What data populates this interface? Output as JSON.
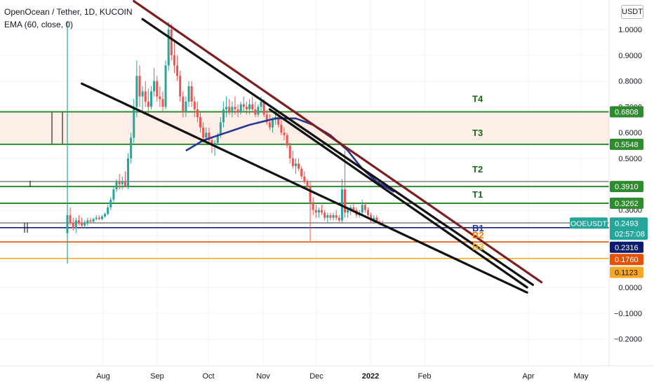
{
  "header": {
    "title": "OpenOcean / Tether, 1D, KUCOIN",
    "indicator": "EMA (60, close, 0)"
  },
  "axis": {
    "unit": "USDT",
    "y_ticks": [
      "1.0000",
      "0.9000",
      "0.8000",
      "0.7000",
      "0.6000",
      "0.5000",
      "0.4000",
      "0.3000",
      "0.2000",
      "0.1000",
      "0.0000",
      "−0.1000",
      "−0.2000"
    ],
    "x_ticks": [
      "Aug",
      "Sep",
      "Oct",
      "Nov",
      "Dec",
      "2022",
      "Feb",
      "Apr",
      "May"
    ]
  },
  "chart_data": {
    "type": "candlestick",
    "symbol": "OOEUSDT",
    "exchange": "KUCOIN",
    "interval": "1D",
    "ylim": [
      -0.26,
      1.1
    ],
    "grid": true,
    "price": {
      "value": 0.2493,
      "countdown": "02:57:08",
      "color": "#26a69a"
    },
    "levels": [
      {
        "label": "T4",
        "value": 0.6808,
        "color": "#2e8b2e",
        "tag_color": "#2e8b2e",
        "text_color": "#1b6b1b"
      },
      {
        "label": "T3",
        "value": 0.5548,
        "color": "#2e8b2e",
        "tag_color": "#2e8b2e",
        "text_color": "#1b6b1b"
      },
      {
        "label": "T2",
        "value": 0.391,
        "color": "#2e8b2e",
        "tag_color": "#2e8b2e",
        "text_color": "#1b6b1b"
      },
      {
        "label": "T1",
        "value": 0.3262,
        "color": "#2e8b2e",
        "tag_color": "#2e8b2e",
        "text_color": "#1b6b1b"
      },
      {
        "label": "B1",
        "value": 0.2316,
        "color": "#1a237e",
        "tag_color": "#0d1b6e",
        "text_color": "#283593"
      },
      {
        "label": "B2",
        "value": 0.176,
        "color": "#e65100",
        "tag_color": "#e65100",
        "text_color": "#f57c00"
      },
      {
        "label": "B3",
        "value": 0.1123,
        "color": "#f9a825",
        "tag_color": "#f9a825",
        "text_color": "#f9a825"
      }
    ],
    "zone": {
      "from": 0.5548,
      "to": 0.6808,
      "color": "#fdeee8"
    },
    "ema_period": 60,
    "candles": [
      [
        0.21,
        0.33,
        0.17,
        0.28
      ],
      [
        0.28,
        0.31,
        0.24,
        0.25
      ],
      [
        0.25,
        0.27,
        0.22,
        0.23
      ],
      [
        0.23,
        0.27,
        0.21,
        0.26
      ],
      [
        0.26,
        0.28,
        0.24,
        0.25
      ],
      [
        0.25,
        0.27,
        0.23,
        0.24
      ],
      [
        0.24,
        0.26,
        0.23,
        0.25
      ],
      [
        0.25,
        0.27,
        0.24,
        0.26
      ],
      [
        0.26,
        0.27,
        0.25,
        0.255
      ],
      [
        0.255,
        0.27,
        0.25,
        0.265
      ],
      [
        0.265,
        0.28,
        0.26,
        0.27
      ],
      [
        0.27,
        0.28,
        0.26,
        0.265
      ],
      [
        0.265,
        0.28,
        0.26,
        0.275
      ],
      [
        0.275,
        0.29,
        0.27,
        0.285
      ],
      [
        0.285,
        0.32,
        0.28,
        0.31
      ],
      [
        0.31,
        0.35,
        0.3,
        0.34
      ],
      [
        0.34,
        0.39,
        0.33,
        0.38
      ],
      [
        0.38,
        0.42,
        0.37,
        0.41
      ],
      [
        0.41,
        0.44,
        0.38,
        0.4
      ],
      [
        0.4,
        0.43,
        0.38,
        0.41
      ],
      [
        0.41,
        0.45,
        0.39,
        0.39
      ],
      [
        0.39,
        0.52,
        0.38,
        0.5
      ],
      [
        0.5,
        0.6,
        0.48,
        0.58
      ],
      [
        0.58,
        0.73,
        0.56,
        0.7
      ],
      [
        0.7,
        0.88,
        0.66,
        0.82
      ],
      [
        0.82,
        0.86,
        0.7,
        0.74
      ],
      [
        0.74,
        0.78,
        0.68,
        0.76
      ],
      [
        0.76,
        0.8,
        0.7,
        0.72
      ],
      [
        0.72,
        0.77,
        0.67,
        0.7
      ],
      [
        0.7,
        0.78,
        0.69,
        0.76
      ],
      [
        0.76,
        0.85,
        0.74,
        0.8
      ],
      [
        0.8,
        0.82,
        0.72,
        0.74
      ],
      [
        0.74,
        0.78,
        0.7,
        0.73
      ],
      [
        0.73,
        0.76,
        0.68,
        0.7
      ],
      [
        0.7,
        0.88,
        0.69,
        0.86
      ],
      [
        0.86,
        1.03,
        0.84,
        1.0
      ],
      [
        1.0,
        1.02,
        0.88,
        0.9
      ],
      [
        0.9,
        0.95,
        0.83,
        0.86
      ],
      [
        0.86,
        0.9,
        0.8,
        0.82
      ],
      [
        0.82,
        0.84,
        0.72,
        0.74
      ],
      [
        0.74,
        0.76,
        0.66,
        0.68
      ],
      [
        0.68,
        0.74,
        0.66,
        0.72
      ],
      [
        0.72,
        0.8,
        0.7,
        0.78
      ],
      [
        0.78,
        0.8,
        0.7,
        0.72
      ],
      [
        0.72,
        0.74,
        0.66,
        0.69
      ],
      [
        0.69,
        0.72,
        0.64,
        0.66
      ],
      [
        0.66,
        0.68,
        0.6,
        0.62
      ],
      [
        0.62,
        0.64,
        0.56,
        0.58
      ],
      [
        0.58,
        0.62,
        0.56,
        0.6
      ],
      [
        0.6,
        0.62,
        0.56,
        0.57
      ],
      [
        0.57,
        0.58,
        0.52,
        0.55
      ],
      [
        0.55,
        0.57,
        0.51,
        0.56
      ],
      [
        0.56,
        0.6,
        0.55,
        0.59
      ],
      [
        0.59,
        0.66,
        0.58,
        0.64
      ],
      [
        0.64,
        0.72,
        0.62,
        0.69
      ],
      [
        0.69,
        0.74,
        0.66,
        0.7
      ],
      [
        0.7,
        0.73,
        0.67,
        0.68
      ],
      [
        0.68,
        0.72,
        0.66,
        0.7
      ],
      [
        0.7,
        0.74,
        0.67,
        0.69
      ],
      [
        0.69,
        0.71,
        0.66,
        0.68
      ],
      [
        0.68,
        0.72,
        0.67,
        0.71
      ],
      [
        0.71,
        0.74,
        0.68,
        0.7
      ],
      [
        0.7,
        0.72,
        0.67,
        0.69
      ],
      [
        0.69,
        0.73,
        0.67,
        0.71
      ],
      [
        0.71,
        0.74,
        0.68,
        0.69
      ],
      [
        0.69,
        0.72,
        0.66,
        0.67
      ],
      [
        0.67,
        0.71,
        0.66,
        0.7
      ],
      [
        0.7,
        0.74,
        0.68,
        0.72
      ],
      [
        0.72,
        0.73,
        0.66,
        0.67
      ],
      [
        0.67,
        0.69,
        0.63,
        0.64
      ],
      [
        0.64,
        0.67,
        0.61,
        0.62
      ],
      [
        0.62,
        0.66,
        0.6,
        0.65
      ],
      [
        0.65,
        0.69,
        0.63,
        0.66
      ],
      [
        0.66,
        0.68,
        0.62,
        0.63
      ],
      [
        0.63,
        0.65,
        0.59,
        0.6
      ],
      [
        0.6,
        0.62,
        0.57,
        0.59
      ],
      [
        0.59,
        0.6,
        0.54,
        0.55
      ],
      [
        0.55,
        0.56,
        0.48,
        0.5
      ],
      [
        0.5,
        0.53,
        0.46,
        0.47
      ],
      [
        0.47,
        0.5,
        0.44,
        0.48
      ],
      [
        0.48,
        0.5,
        0.45,
        0.46
      ],
      [
        0.46,
        0.47,
        0.42,
        0.43
      ],
      [
        0.43,
        0.45,
        0.4,
        0.41
      ],
      [
        0.41,
        0.42,
        0.38,
        0.39
      ],
      [
        0.39,
        0.41,
        0.18,
        0.33
      ],
      [
        0.33,
        0.35,
        0.28,
        0.3
      ],
      [
        0.3,
        0.32,
        0.27,
        0.29
      ],
      [
        0.29,
        0.31,
        0.27,
        0.3
      ],
      [
        0.3,
        0.32,
        0.28,
        0.29
      ],
      [
        0.29,
        0.3,
        0.26,
        0.27
      ],
      [
        0.27,
        0.29,
        0.25,
        0.28
      ],
      [
        0.28,
        0.29,
        0.26,
        0.27
      ],
      [
        0.27,
        0.29,
        0.26,
        0.28
      ],
      [
        0.28,
        0.3,
        0.26,
        0.27
      ],
      [
        0.27,
        0.28,
        0.25,
        0.26
      ],
      [
        0.26,
        0.42,
        0.25,
        0.38
      ],
      [
        0.38,
        0.53,
        0.27,
        0.29
      ],
      [
        0.29,
        0.31,
        0.27,
        0.3
      ],
      [
        0.3,
        0.32,
        0.28,
        0.31
      ],
      [
        0.31,
        0.33,
        0.29,
        0.3
      ],
      [
        0.3,
        0.31,
        0.27,
        0.28
      ],
      [
        0.28,
        0.3,
        0.27,
        0.29
      ],
      [
        0.29,
        0.34,
        0.28,
        0.32
      ],
      [
        0.32,
        0.33,
        0.29,
        0.3
      ],
      [
        0.3,
        0.31,
        0.27,
        0.28
      ],
      [
        0.28,
        0.29,
        0.25,
        0.26
      ],
      [
        0.26,
        0.28,
        0.25,
        0.27
      ],
      [
        0.27,
        0.28,
        0.25,
        0.255
      ],
      [
        0.255,
        0.26,
        0.24,
        0.25
      ],
      [
        0.25,
        0.26,
        0.24,
        0.2493
      ]
    ],
    "ema": [
      [
        41,
        0.53
      ],
      [
        47,
        0.57
      ],
      [
        55,
        0.6
      ],
      [
        63,
        0.63
      ],
      [
        72,
        0.655
      ],
      [
        79,
        0.655
      ],
      [
        85,
        0.63
      ],
      [
        91,
        0.59
      ],
      [
        97,
        0.53
      ],
      [
        102,
        0.46
      ],
      [
        107,
        0.41
      ],
      [
        113,
        0.37
      ]
    ],
    "trendlines": [
      {
        "color": "#7b1f1f",
        "from": [
          23,
          1.11
        ],
        "to": [
          164,
          0.02
        ]
      },
      {
        "color": "#111111",
        "from": [
          26,
          1.04
        ],
        "to": [
          161,
          0.01
        ]
      },
      {
        "color": "#111111",
        "from": [
          5,
          0.79
        ],
        "to": [
          159,
          -0.02
        ]
      },
      {
        "color": "#111111",
        "from": [
          70,
          0.69
        ],
        "to": [
          159,
          0.0
        ]
      }
    ]
  }
}
